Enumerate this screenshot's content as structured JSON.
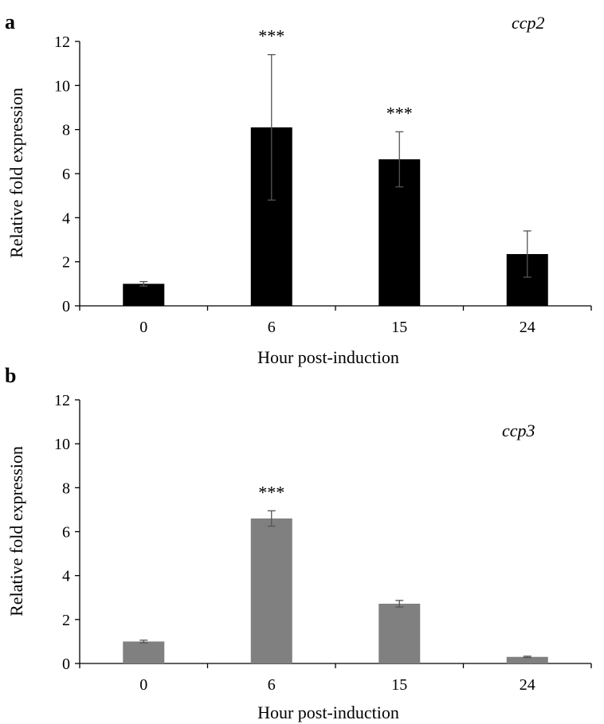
{
  "chart_data": [
    {
      "type": "bar",
      "panel_label": "a",
      "annotation": "ccp2",
      "categories": [
        "0",
        "6",
        "15",
        "24"
      ],
      "series": [
        {
          "values": [
            1.0,
            8.1,
            6.65,
            2.35
          ],
          "errors": [
            0.1,
            3.3,
            1.25,
            1.05
          ],
          "color": "#000000"
        }
      ],
      "significance": [
        "",
        "***",
        "***",
        ""
      ],
      "xlabel": "Hour post-induction",
      "ylabel": "Relative fold expression",
      "ylim": [
        0,
        12
      ],
      "yticks": [
        "0",
        "2",
        "4",
        "6",
        "8",
        "10",
        "12"
      ],
      "grid": false
    },
    {
      "type": "bar",
      "panel_label": "b",
      "annotation": "ccp3",
      "categories": [
        "0",
        "6",
        "15",
        "24"
      ],
      "series": [
        {
          "values": [
            1.0,
            6.6,
            2.72,
            0.3
          ],
          "errors": [
            0.06,
            0.35,
            0.15,
            0.03
          ],
          "color": "#808080"
        }
      ],
      "significance": [
        "",
        "***",
        "",
        ""
      ],
      "xlabel": "Hour post-induction",
      "ylabel": "Relative fold expression",
      "ylim": [
        0,
        12
      ],
      "yticks": [
        "0",
        "2",
        "4",
        "6",
        "8",
        "10",
        "12"
      ],
      "grid": false
    }
  ]
}
